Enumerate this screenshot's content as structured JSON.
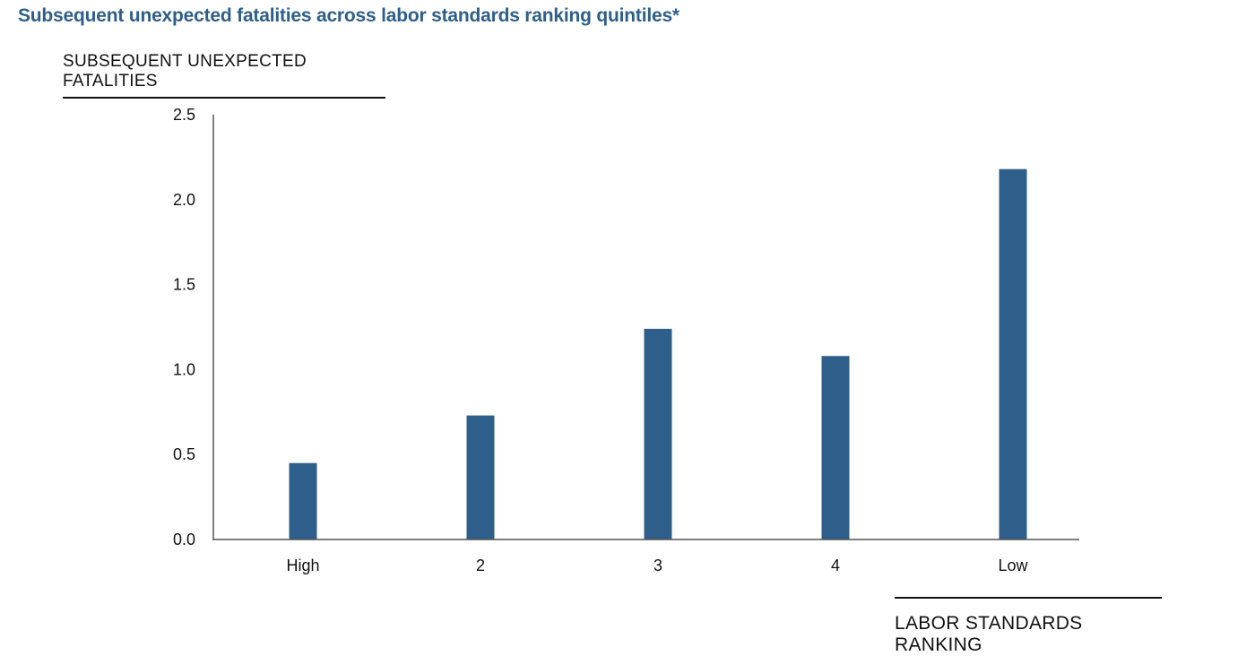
{
  "chart_data": {
    "type": "bar",
    "title": "Subsequent unexpected fatalities across labor standards ranking quintiles*",
    "ylabel": "SUBSEQUENT UNEXPECTED FATALITIES",
    "xlabel": "LABOR STANDARDS RANKING",
    "categories": [
      "High",
      "2",
      "3",
      "4",
      "Low"
    ],
    "values": [
      0.45,
      0.73,
      1.24,
      1.08,
      2.18
    ],
    "ylim": [
      0,
      2.5
    ],
    "yticks": [
      "0.0",
      "0.5",
      "1.0",
      "1.5",
      "2.0",
      "2.5"
    ],
    "grid": false,
    "bar_color": "#2e5f8a"
  }
}
